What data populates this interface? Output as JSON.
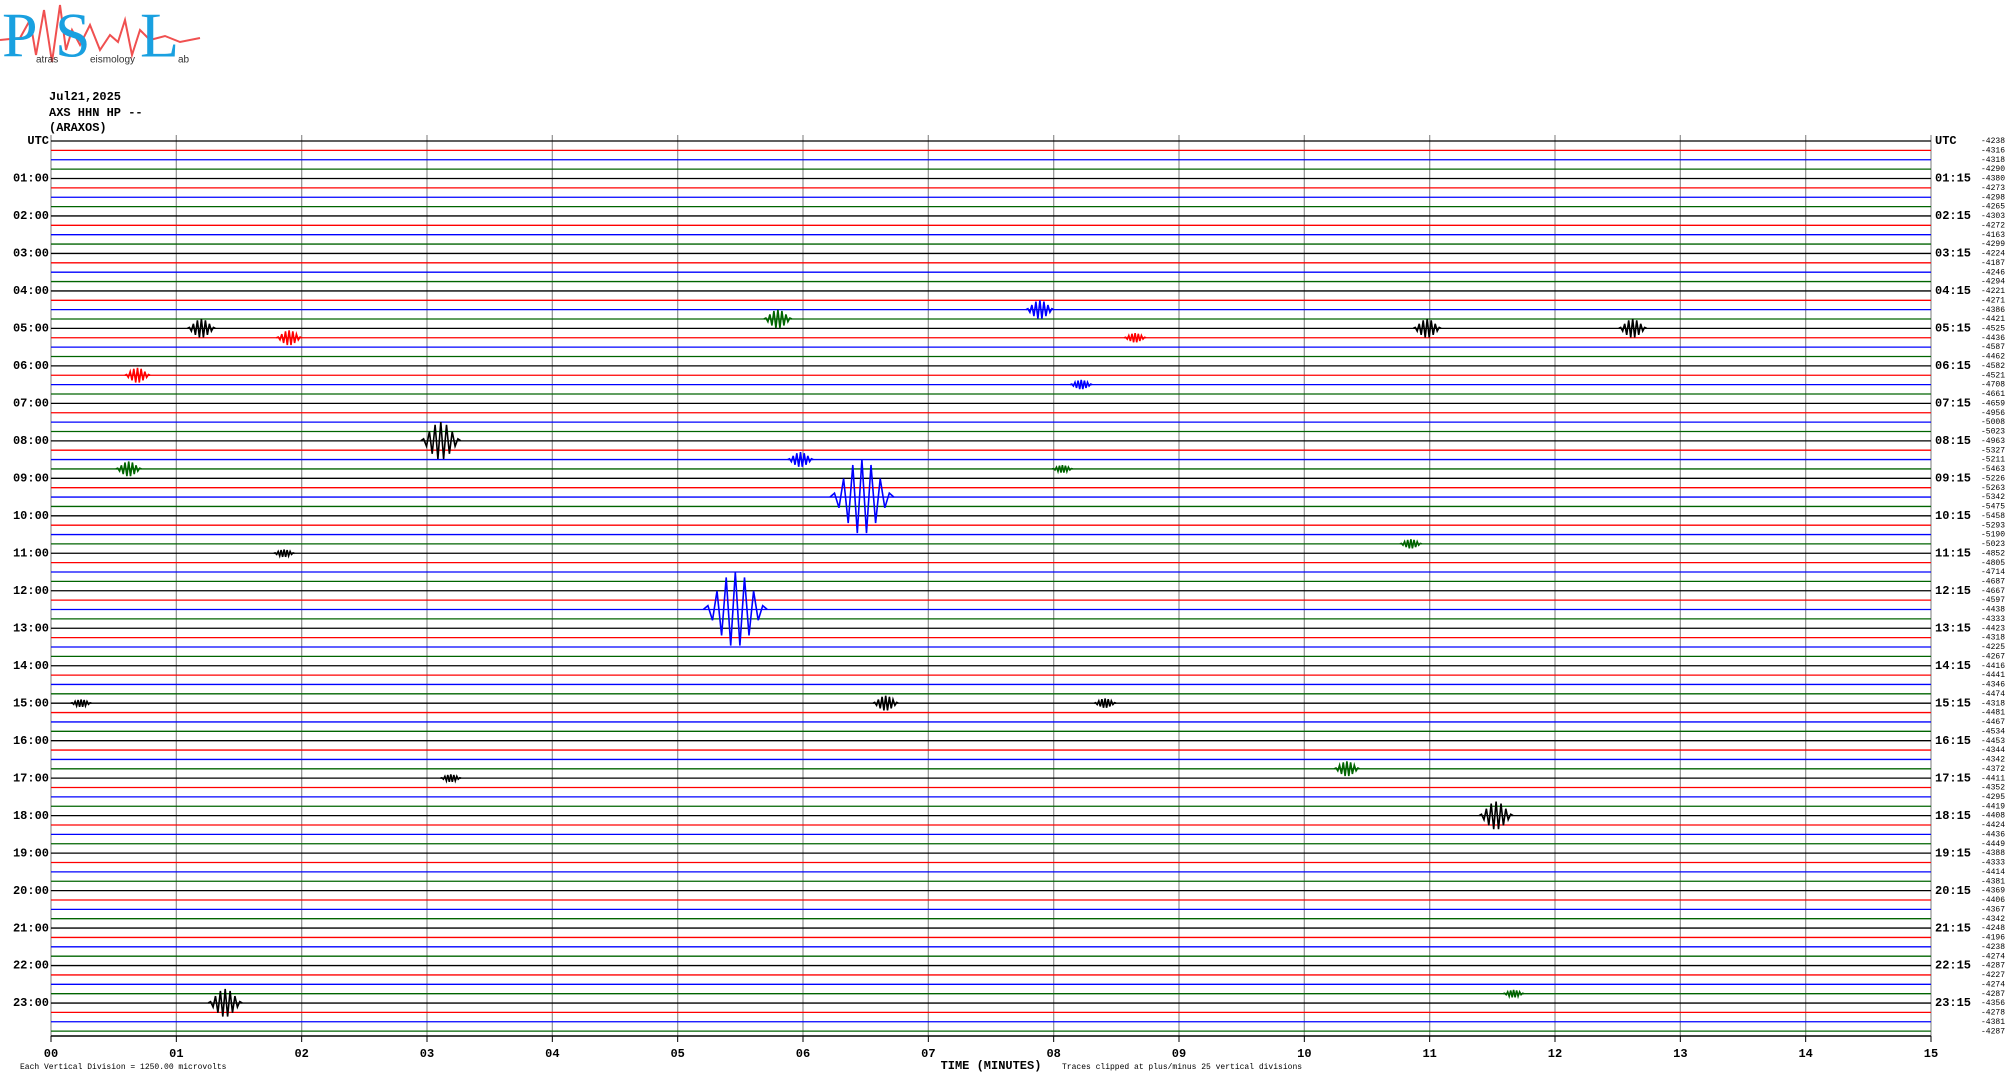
{
  "header": {
    "date": "Jul21,2025",
    "station": "AXS HHN HP --",
    "location": "(ARAXOS)"
  },
  "logo": {
    "letters": [
      "P",
      "S",
      "L"
    ],
    "words": [
      "atras",
      "eismology",
      "ab"
    ]
  },
  "chart_data": {
    "type": "helicorder",
    "colors": [
      "#000000",
      "#ff0000",
      "#0000ff",
      "#006400"
    ],
    "grid": true,
    "xlim": [
      0,
      15
    ],
    "xticks": [
      {
        "value": 0,
        "label": "00"
      },
      {
        "value": 1,
        "label": "01"
      },
      {
        "value": 2,
        "label": "02"
      },
      {
        "value": 3,
        "label": "03"
      },
      {
        "value": 4,
        "label": "04"
      },
      {
        "value": 5,
        "label": "05"
      },
      {
        "value": 6,
        "label": "06"
      },
      {
        "value": 7,
        "label": "07"
      },
      {
        "value": 8,
        "label": "08"
      },
      {
        "value": 9,
        "label": "09"
      },
      10,
      11,
      12,
      13,
      14,
      15
    ],
    "xlabel": "TIME (MINUTES)",
    "footnote_left": "Each Vertical Division = 1250.00 microvolts",
    "footnote_right": "Traces clipped at plus/minus 25 vertical divisions",
    "left_labels": [
      "UTC",
      "01:00",
      "02:00",
      "03:00",
      "04:00",
      "05:00",
      "06:00",
      "07:00",
      "08:00",
      "09:00",
      "10:00",
      "11:00",
      "12:00",
      "13:00",
      "14:00",
      "15:00",
      "16:00",
      "17:00",
      "18:00",
      "19:00",
      "20:00",
      "21:00",
      "22:00",
      "23:00"
    ],
    "right_labels": [
      "UTC",
      "01:15",
      "02:15",
      "03:15",
      "04:15",
      "05:15",
      "06:15",
      "07:15",
      "08:15",
      "09:15",
      "10:15",
      "11:15",
      "12:15",
      "13:15",
      "14:15",
      "15:15",
      "16:15",
      "17:15",
      "18:15",
      "19:15",
      "20:15",
      "21:15",
      "22:15",
      "23:15"
    ],
    "offsets": [
      -4238,
      -4316,
      -4318,
      -4290,
      -4380,
      -4273,
      -4298,
      -4265,
      -4303,
      -4272,
      -4163,
      -4299,
      -4224,
      -4187,
      -4246,
      -4294,
      -4221,
      -4271,
      -4386,
      -4421,
      -4525,
      -4436,
      -4587,
      -4462,
      -4582,
      -4521,
      -4708,
      -4661,
      -4659,
      -4956,
      -5008,
      -5023,
      -4963,
      -5327,
      -5211,
      -5463,
      -5226,
      -5263,
      -5342,
      -5475,
      -5458,
      -5293,
      -5190,
      -5023,
      -4852,
      -4805,
      -4714,
      -4687,
      -4667,
      -4597,
      -4438,
      -4333,
      -4423,
      -4318,
      -4225,
      -4267,
      -4416,
      -4441,
      -4346,
      -4474,
      -4318,
      -4481,
      -4467,
      -4534,
      -4453,
      -4344,
      -4342,
      -4372,
      -4411,
      -4352,
      -4295,
      -4419,
      -4408,
      -4424,
      -4436,
      -4449,
      -4388,
      -4333,
      -4414,
      -4381,
      -4369,
      -4406,
      -4367,
      -4342,
      -4248,
      -4196,
      -4238,
      -4274,
      -4287,
      -4227,
      -4274,
      -4287,
      -4356,
      -4278,
      -4381,
      -4287
    ],
    "events": [
      {
        "row": 18,
        "minute": 7.89,
        "amplitude": 1
      },
      {
        "row": 19,
        "minute": 5.8,
        "amplitude": 1
      },
      {
        "row": 20,
        "minute": 1.2,
        "amplitude": 1
      },
      {
        "row": 20,
        "minute": 10.98,
        "amplitude": 1
      },
      {
        "row": 20,
        "minute": 12.62,
        "amplitude": 1
      },
      {
        "row": 21,
        "minute": 1.9,
        "amplitude": 0.8
      },
      {
        "row": 21,
        "minute": 8.65,
        "amplitude": 0.5
      },
      {
        "row": 25,
        "minute": 0.69,
        "amplitude": 0.8
      },
      {
        "row": 26,
        "minute": 8.22,
        "amplitude": 0.5
      },
      {
        "row": 32,
        "minute": 3.11,
        "amplitude": 2
      },
      {
        "row": 34,
        "minute": 5.98,
        "amplitude": 0.8
      },
      {
        "row": 35,
        "minute": 0.62,
        "amplitude": 0.8
      },
      {
        "row": 35,
        "minute": 8.07,
        "amplitude": 0.4
      },
      {
        "row": 38,
        "minute": 6.47,
        "amplitude": 4
      },
      {
        "row": 43,
        "minute": 10.85,
        "amplitude": 0.5
      },
      {
        "row": 44,
        "minute": 1.86,
        "amplitude": 0.4
      },
      {
        "row": 50,
        "minute": 5.46,
        "amplitude": 4
      },
      {
        "row": 60,
        "minute": 0.24,
        "amplitude": 0.4
      },
      {
        "row": 60,
        "minute": 6.66,
        "amplitude": 0.8
      },
      {
        "row": 60,
        "minute": 8.41,
        "amplitude": 0.5
      },
      {
        "row": 67,
        "minute": 10.34,
        "amplitude": 0.8
      },
      {
        "row": 68,
        "minute": 3.19,
        "amplitude": 0.4
      },
      {
        "row": 72,
        "minute": 11.53,
        "amplitude": 1.5
      },
      {
        "row": 91,
        "minute": 11.67,
        "amplitude": 0.4
      },
      {
        "row": 92,
        "minute": 1.39,
        "amplitude": 1.5
      }
    ]
  }
}
